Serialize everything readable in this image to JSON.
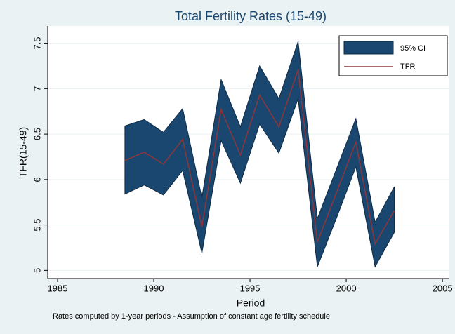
{
  "chart_data": {
    "type": "line",
    "title": "Total Fertility Rates (15-49)",
    "x_label": "Period",
    "y_label": "TFR(15-49)",
    "note": "Rates computed by 1-year periods - Assumption of constant age fertility schedule",
    "x": [
      1988.5,
      1989.5,
      1990.5,
      1991.5,
      1992.5,
      1993.5,
      1994.5,
      1995.5,
      1996.5,
      1997.5,
      1998.5,
      1999.5,
      2000.5,
      2001.5,
      2002.5
    ],
    "series": [
      {
        "name": "95% CI",
        "color": "#1a476f",
        "upper": [
          6.59,
          6.66,
          6.52,
          6.78,
          5.8,
          7.1,
          6.58,
          7.25,
          6.89,
          7.52,
          5.57,
          6.12,
          6.67,
          5.53,
          5.92
        ],
        "lower": [
          5.84,
          5.94,
          5.83,
          6.1,
          5.19,
          6.43,
          5.96,
          6.61,
          6.29,
          6.89,
          5.04,
          5.58,
          6.14,
          5.04,
          5.42
        ]
      },
      {
        "name": "TFR",
        "color": "#90353b",
        "values": [
          6.21,
          6.3,
          6.17,
          6.44,
          5.48,
          6.77,
          6.27,
          6.93,
          6.58,
          7.21,
          5.31,
          5.86,
          6.41,
          5.29,
          5.66
        ]
      }
    ],
    "xlim": [
      1984.49,
      2005.36
    ],
    "xticks": [
      1985,
      1990,
      1995,
      2000,
      2005
    ],
    "ylim": [
      4.91,
      7.69
    ],
    "yticks": [
      5,
      5.5,
      6,
      6.5,
      7,
      7.5
    ],
    "grid": true,
    "legend_position": "top-right"
  }
}
